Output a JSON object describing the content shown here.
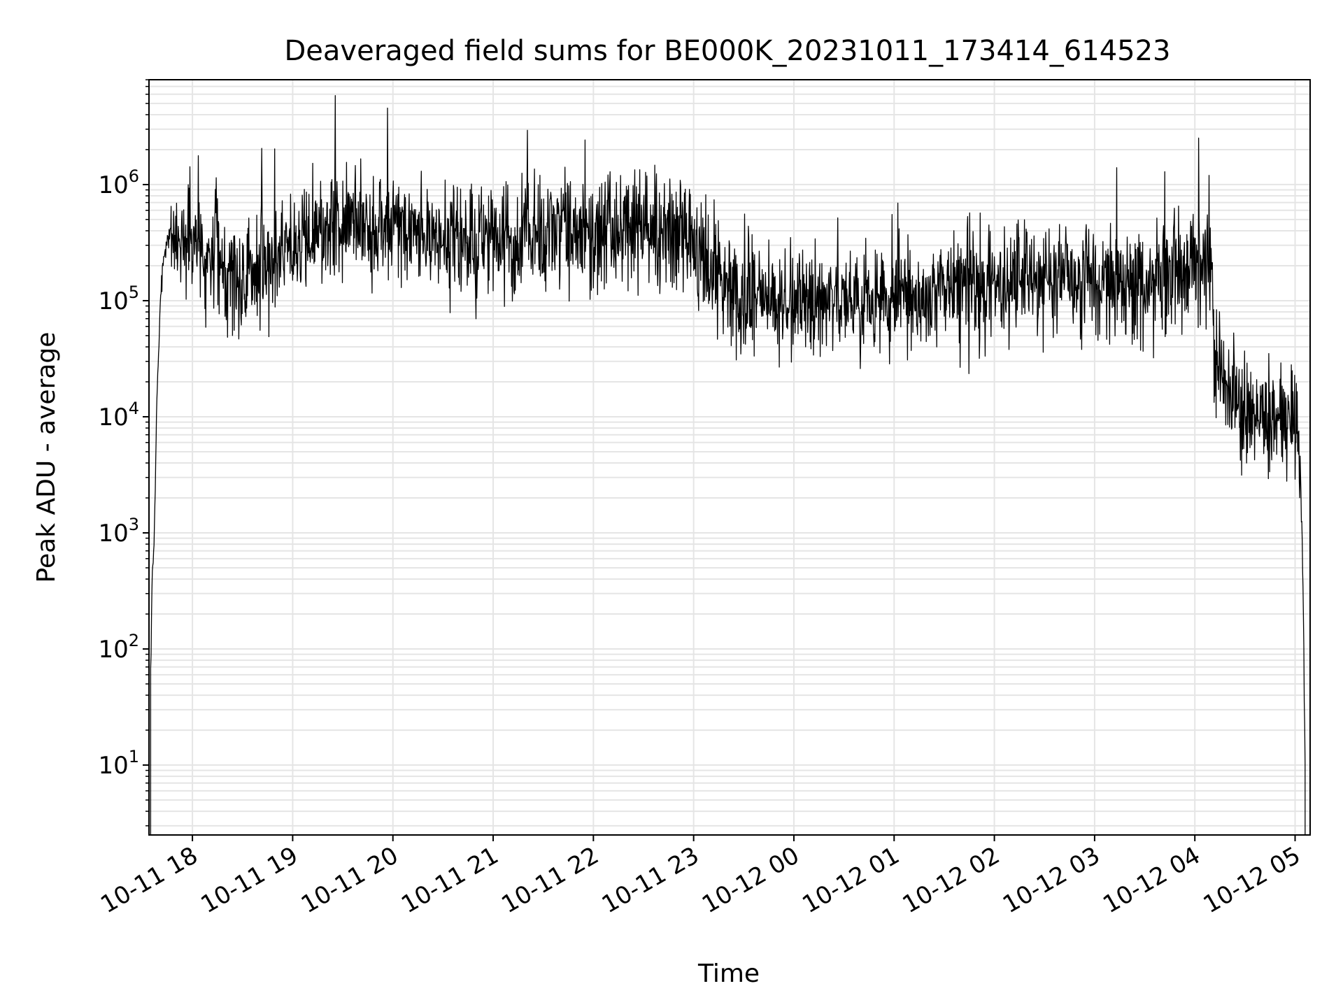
{
  "chart_data": {
    "type": "line",
    "title": "Deaveraged field sums for BE000K_20231011_173414_614523",
    "xlabel": "Time",
    "ylabel": "Peak ADU - average",
    "yscale": "log",
    "ylim": [
      2.5,
      8000000
    ],
    "xlim": [
      "2023-10-11 17:34",
      "2023-10-12 05:09"
    ],
    "grid": true,
    "line_color": "#000000",
    "grid_color": "#e5e5e5",
    "x_ticks": [
      {
        "label": "10-11 18",
        "t": "2023-10-11 18:00"
      },
      {
        "label": "10-11 19",
        "t": "2023-10-11 19:00"
      },
      {
        "label": "10-11 20",
        "t": "2023-10-11 20:00"
      },
      {
        "label": "10-11 21",
        "t": "2023-10-11 21:00"
      },
      {
        "label": "10-11 22",
        "t": "2023-10-11 22:00"
      },
      {
        "label": "10-11 23",
        "t": "2023-10-11 23:00"
      },
      {
        "label": "10-12 00",
        "t": "2023-10-12 00:00"
      },
      {
        "label": "10-12 01",
        "t": "2023-10-12 01:00"
      },
      {
        "label": "10-12 02",
        "t": "2023-10-12 02:00"
      },
      {
        "label": "10-12 03",
        "t": "2023-10-12 03:00"
      },
      {
        "label": "10-12 04",
        "t": "2023-10-12 04:00"
      },
      {
        "label": "10-12 05",
        "t": "2023-10-12 05:00"
      }
    ],
    "y_ticks": [
      {
        "value": 10,
        "base": "10",
        "exp": "1"
      },
      {
        "value": 100,
        "base": "10",
        "exp": "2"
      },
      {
        "value": 1000,
        "base": "10",
        "exp": "3"
      },
      {
        "value": 10000,
        "base": "10",
        "exp": "4"
      },
      {
        "value": 100000,
        "base": "10",
        "exp": "5"
      },
      {
        "value": 1000000,
        "base": "10",
        "exp": "6"
      }
    ],
    "series": [
      {
        "values_approx": [
          {
            "t": "2023-10-11 17:35",
            "y": 60
          },
          {
            "t": "2023-10-11 17:36",
            "y": 500
          },
          {
            "t": "2023-10-11 17:37",
            "y": 800
          },
          {
            "t": "2023-10-11 17:39",
            "y": 20000
          },
          {
            "t": "2023-10-11 17:42",
            "y": 200000
          },
          {
            "t": "2023-10-11 17:45",
            "y": 350000
          },
          {
            "t": "2023-10-11 18:00",
            "y": 350000
          },
          {
            "t": "2023-10-11 18:30",
            "y": 150000
          },
          {
            "t": "2023-10-11 19:00",
            "y": 300000
          },
          {
            "t": "2023-10-11 19:30",
            "y": 500000
          },
          {
            "t": "2023-10-11 20:00",
            "y": 400000
          },
          {
            "t": "2023-10-11 20:30",
            "y": 350000
          },
          {
            "t": "2023-10-11 21:00",
            "y": 300000
          },
          {
            "t": "2023-10-11 21:30",
            "y": 350000
          },
          {
            "t": "2023-10-11 22:00",
            "y": 400000
          },
          {
            "t": "2023-10-11 22:30",
            "y": 400000
          },
          {
            "t": "2023-10-11 23:00",
            "y": 300000
          },
          {
            "t": "2023-10-11 23:30",
            "y": 100000
          },
          {
            "t": "2023-10-12 00:00",
            "y": 100000
          },
          {
            "t": "2023-10-12 00:30",
            "y": 100000
          },
          {
            "t": "2023-10-12 01:00",
            "y": 100000
          },
          {
            "t": "2023-10-12 01:30",
            "y": 120000
          },
          {
            "t": "2023-10-12 02:00",
            "y": 120000
          },
          {
            "t": "2023-10-12 02:30",
            "y": 150000
          },
          {
            "t": "2023-10-12 03:00",
            "y": 150000
          },
          {
            "t": "2023-10-12 03:30",
            "y": 130000
          },
          {
            "t": "2023-10-12 04:00",
            "y": 200000
          },
          {
            "t": "2023-10-12 04:10",
            "y": 250000
          },
          {
            "t": "2023-10-12 04:12",
            "y": 30000
          },
          {
            "t": "2023-10-12 04:30",
            "y": 10000
          },
          {
            "t": "2023-10-12 05:00",
            "y": 8000
          },
          {
            "t": "2023-10-12 05:03",
            "y": 5000
          },
          {
            "t": "2023-10-12 05:05",
            "y": 200
          },
          {
            "t": "2023-10-12 05:06",
            "y": 10
          }
        ]
      }
    ]
  }
}
